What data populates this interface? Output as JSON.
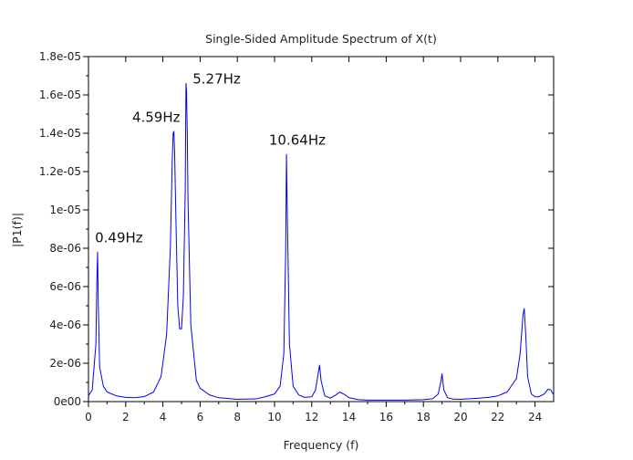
{
  "chart_data": {
    "type": "line",
    "title": "Single-Sided Amplitude Spectrum of X(t)",
    "xlabel": "Frequency (f)",
    "ylabel": "|P1(f)|",
    "xlim": [
      0,
      25
    ],
    "ylim": [
      0,
      1.8e-05
    ],
    "xticks": [
      0,
      2,
      4,
      6,
      8,
      10,
      12,
      14,
      16,
      18,
      20,
      22,
      24
    ],
    "yticks": [
      0,
      2e-06,
      4e-06,
      6e-06,
      8e-06,
      1e-05,
      1.2e-05,
      1.4e-05,
      1.6e-05,
      1.8e-05
    ],
    "ytick_labels": [
      "0e00",
      "2e-06",
      "4e-06",
      "6e-06",
      "8e-06",
      "1e-05",
      "1.2e-05",
      "1.4e-05",
      "1.6e-05",
      "1.8e-05"
    ],
    "grid": false,
    "line_color": "#0000ff",
    "annotations": [
      {
        "text": "0.49Hz",
        "x": 0.35,
        "y": 8.3e-06
      },
      {
        "text": "4.59Hz",
        "x": 2.35,
        "y": 1.46e-05
      },
      {
        "text": "5.27Hz",
        "x": 5.6,
        "y": 1.66e-05
      },
      {
        "text": "10.64Hz",
        "x": 9.7,
        "y": 1.34e-05
      }
    ],
    "series": [
      {
        "x": [
          0,
          0.2,
          0.4,
          0.45,
          0.49,
          0.53,
          0.6,
          0.8,
          1.0,
          1.5,
          2.0,
          2.5,
          3.0,
          3.5,
          3.9,
          4.2,
          4.4,
          4.5,
          4.55,
          4.59,
          4.63,
          4.7,
          4.8,
          4.9,
          5.0,
          5.1,
          5.2,
          5.24,
          5.27,
          5.31,
          5.35,
          5.5,
          5.8,
          6.0,
          6.5,
          7.0,
          8.0,
          9.0,
          9.5,
          10.0,
          10.3,
          10.5,
          10.6,
          10.64,
          10.68,
          10.8,
          11.0,
          11.3,
          11.6,
          12.0,
          12.2,
          12.35,
          12.42,
          12.5,
          12.7,
          13.0,
          13.3,
          13.5,
          13.8,
          14.0,
          14.5,
          15.0,
          16.0,
          17.0,
          18.0,
          18.5,
          18.8,
          18.95,
          19.0,
          19.1,
          19.3,
          19.6,
          20.0,
          20.5,
          21.0,
          21.5,
          22.0,
          22.5,
          23.0,
          23.2,
          23.35,
          23.42,
          23.5,
          23.6,
          23.8,
          24.0,
          24.2,
          24.5,
          24.7,
          24.85,
          25.0
        ],
        "y": [
          3e-07,
          6e-07,
          3e-06,
          6.3e-06,
          7.8e-06,
          5e-06,
          1.8e-06,
          8e-07,
          5e-07,
          3e-07,
          2.2e-07,
          2e-07,
          2.6e-07,
          5e-07,
          1.3e-06,
          3.5e-06,
          8e-06,
          1.25e-05,
          1.4e-05,
          1.41e-05,
          1.3e-05,
          9.5e-06,
          5e-06,
          3.8e-06,
          3.8e-06,
          5.5e-06,
          1.1e-05,
          1.66e-05,
          1.62e-05,
          1.4e-05,
          1.05e-05,
          4e-06,
          1.1e-06,
          7e-07,
          3.5e-07,
          2e-07,
          1.2e-07,
          1.4e-07,
          2.5e-07,
          4e-07,
          8e-07,
          2.5e-06,
          8e-06,
          1.29e-05,
          1.02e-05,
          3e-06,
          8e-07,
          3.5e-07,
          2.2e-07,
          2.5e-07,
          6e-07,
          1.5e-06,
          1.9e-06,
          1.1e-06,
          3e-07,
          1.8e-07,
          3.5e-07,
          5e-07,
          3.5e-07,
          2e-07,
          1e-07,
          8e-08,
          8e-08,
          8e-08,
          1e-07,
          1.5e-07,
          4e-07,
          1.1e-06,
          1.45e-06,
          6e-07,
          2e-07,
          1.3e-07,
          1.2e-07,
          1.5e-07,
          1.8e-07,
          2.2e-07,
          3e-07,
          5e-07,
          1.2e-06,
          2.5e-06,
          4.5e-06,
          4.85e-06,
          3.5e-06,
          1.3e-06,
          4e-07,
          2.5e-07,
          2.5e-07,
          4e-07,
          6.5e-07,
          6e-07,
          3.5e-07
        ]
      }
    ]
  }
}
